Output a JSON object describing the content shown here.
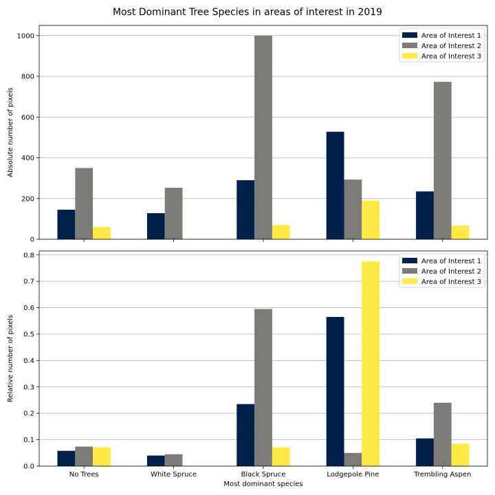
{
  "figure": {
    "title": "Most Dominant Tree Species in areas of interest in 2019"
  },
  "colors": {
    "aoi1": "#00204c",
    "aoi2": "#7c7b78",
    "aoi3": "#ffe945",
    "grid": "#b0b0b0"
  },
  "chart_data": [
    {
      "type": "bar",
      "categories": [
        "No Trees",
        "White Spruce",
        "Black Spruce",
        "Lodgepole Pine",
        "Trembling Aspen"
      ],
      "series": [
        {
          "name": "Area of Interest 1",
          "values": [
            145,
            128,
            290,
            528,
            235
          ]
        },
        {
          "name": "Area of Interest 2",
          "values": [
            350,
            253,
            1000,
            293,
            773
          ]
        },
        {
          "name": "Area of Interest 3",
          "values": [
            60,
            0,
            70,
            190,
            67
          ]
        }
      ],
      "ylabel": "Absolute number of pixels",
      "xlabel": "",
      "ylim": [
        0,
        1050
      ],
      "yticks": [
        "0",
        "200",
        "400",
        "600",
        "800",
        "1000"
      ],
      "show_xticklabels": false,
      "grid": "horizontal",
      "legend": "top-right"
    },
    {
      "type": "bar",
      "categories": [
        "No Trees",
        "White Spruce",
        "Black Spruce",
        "Lodgepole Pine",
        "Trembling Aspen"
      ],
      "series": [
        {
          "name": "Area of Interest 1",
          "values": [
            0.058,
            0.04,
            0.235,
            0.565,
            0.105
          ]
        },
        {
          "name": "Area of Interest 2",
          "values": [
            0.074,
            0.045,
            0.595,
            0.05,
            0.24
          ]
        },
        {
          "name": "Area of Interest 3",
          "values": [
            0.071,
            0.0,
            0.071,
            0.775,
            0.085
          ]
        }
      ],
      "ylabel": "Relative number of pixels",
      "xlabel": "Most dominant species",
      "ylim": [
        0,
        0.815
      ],
      "yticks": [
        "0.0",
        "0.1",
        "0.2",
        "0.3",
        "0.4",
        "0.5",
        "0.6",
        "0.7",
        "0.8"
      ],
      "show_xticklabels": true,
      "grid": "horizontal",
      "legend": "top-right"
    }
  ]
}
